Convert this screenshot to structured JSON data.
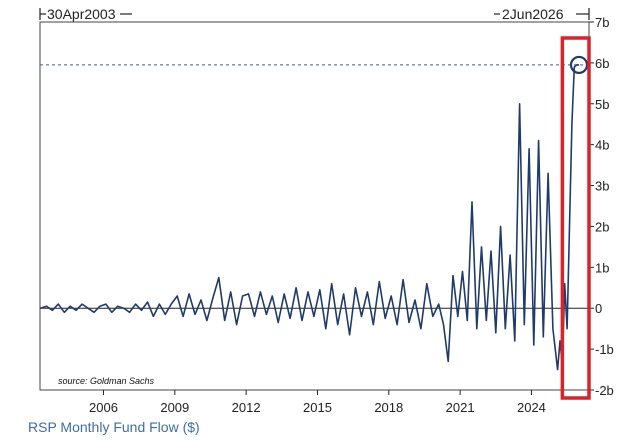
{
  "chart_data": {
    "type": "line",
    "title": "RSP Monthly Fund Flow ($)",
    "source": "source: Goldman Sachs",
    "range_start": "30Apr2003",
    "range_end": "2Jun2026",
    "xlim": [
      2003.33,
      2026.42
    ],
    "ylim": [
      -2,
      7
    ],
    "x_ticks": [
      2006,
      2009,
      2012,
      2015,
      2018,
      2021,
      2024
    ],
    "x_tick_labels": [
      "2006",
      "2009",
      "2012",
      "2015",
      "2018",
      "2021",
      "2024"
    ],
    "y_ticks": [
      7,
      6,
      5,
      4,
      3,
      2,
      1,
      0,
      -1,
      -2
    ],
    "y_tick_labels": [
      "7b",
      "6b",
      "5b",
      "4b",
      "3b",
      "2b",
      "1b",
      "0",
      "-1b",
      "-2b"
    ],
    "reference_line": 5.95,
    "highlight_point": {
      "x": 2026.0,
      "y": 5.95
    },
    "highlight_box": {
      "x_from": 2025.3,
      "x_to": 2026.42
    },
    "colors": {
      "series": "#1f3b6e",
      "highlight": "#d8232a",
      "title": "#3d6cb5",
      "axis": "#222222"
    },
    "series": [
      {
        "x": [
          2003.35,
          2003.6,
          2003.85,
          2004.1,
          2004.35,
          2004.6,
          2004.85,
          2005.1,
          2005.35,
          2005.6,
          2005.85,
          2006.1,
          2006.35,
          2006.6,
          2006.85,
          2007.1,
          2007.35,
          2007.6,
          2007.85,
          2008.1,
          2008.35,
          2008.6,
          2008.85,
          2009.1,
          2009.35,
          2009.6,
          2009.85,
          2010.1,
          2010.35,
          2010.6,
          2010.85,
          2011.1,
          2011.35,
          2011.6,
          2011.85,
          2012.1,
          2012.35,
          2012.6,
          2012.85,
          2013.1,
          2013.35,
          2013.6,
          2013.85,
          2014.1,
          2014.35,
          2014.6,
          2014.85,
          2015.1,
          2015.35,
          2015.6,
          2015.85,
          2016.1,
          2016.35,
          2016.6,
          2016.85,
          2017.1,
          2017.35,
          2017.6,
          2017.85,
          2018.1,
          2018.35,
          2018.6,
          2018.85,
          2019.1,
          2019.35,
          2019.6,
          2019.85,
          2020.1,
          2020.3,
          2020.5,
          2020.7,
          2020.9,
          2021.1,
          2021.3,
          2021.5,
          2021.7,
          2021.9,
          2022.1,
          2022.3,
          2022.5,
          2022.7,
          2022.9,
          2023.1,
          2023.3,
          2023.5,
          2023.7,
          2023.9,
          2024.1,
          2024.3,
          2024.5,
          2024.7,
          2024.9,
          2025.1,
          2025.2,
          2025.3,
          2025.4,
          2025.5,
          2025.6,
          2025.7,
          2025.8,
          2025.9,
          2026.0
        ],
        "y": [
          0.0,
          0.05,
          -0.05,
          0.1,
          -0.1,
          0.05,
          -0.05,
          0.1,
          0.0,
          -0.1,
          0.05,
          0.1,
          -0.1,
          0.05,
          0.0,
          -0.1,
          0.1,
          -0.05,
          0.15,
          -0.2,
          0.1,
          -0.15,
          0.1,
          0.3,
          -0.2,
          0.35,
          -0.15,
          0.2,
          -0.3,
          0.25,
          0.75,
          -0.3,
          0.4,
          -0.4,
          0.3,
          0.35,
          -0.2,
          0.4,
          -0.15,
          0.3,
          -0.35,
          0.35,
          -0.25,
          0.5,
          -0.3,
          0.4,
          -0.2,
          0.45,
          -0.5,
          0.6,
          -0.4,
          0.35,
          -0.65,
          0.5,
          -0.2,
          0.4,
          -0.4,
          0.65,
          -0.25,
          0.3,
          -0.4,
          0.7,
          -0.35,
          0.2,
          -0.5,
          0.6,
          -0.2,
          0.1,
          -0.4,
          -1.3,
          0.8,
          -0.2,
          0.9,
          -0.3,
          2.6,
          -0.5,
          1.5,
          -0.3,
          1.4,
          -0.6,
          2.0,
          -0.5,
          1.3,
          -0.8,
          5.0,
          -0.4,
          3.9,
          -0.9,
          4.1,
          -0.7,
          3.3,
          -0.5,
          -1.5,
          -0.8,
          -1.4,
          0.6,
          -0.5,
          2.0,
          4.5,
          5.9,
          5.95,
          5.95
        ]
      }
    ]
  }
}
